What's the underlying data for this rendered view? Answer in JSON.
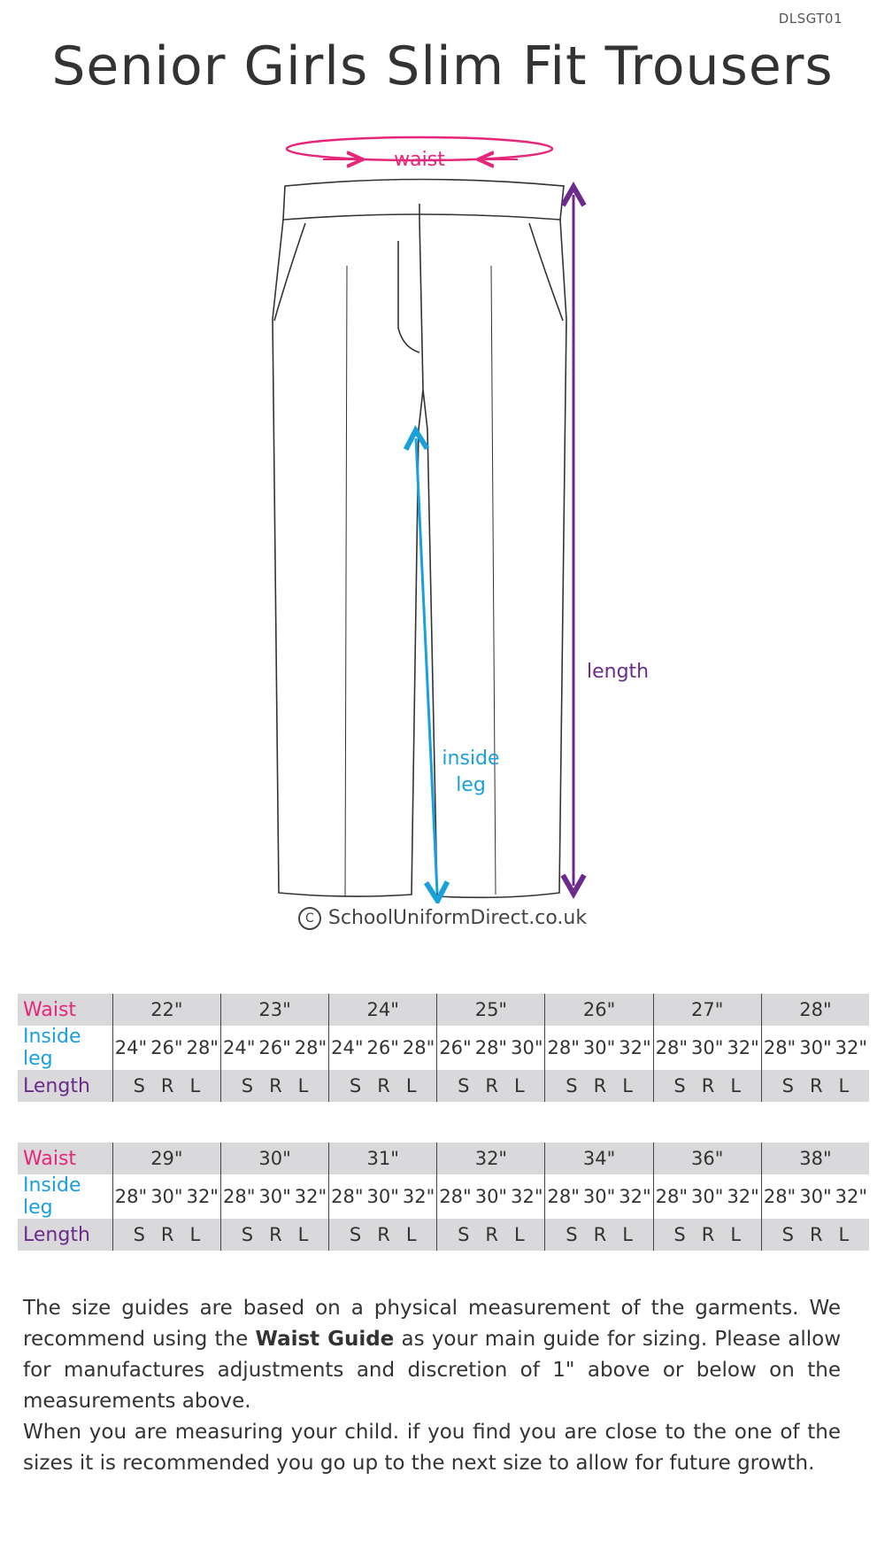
{
  "product_code": "DLSGT01",
  "title": "Senior Girls Slim Fit Trousers",
  "diagram": {
    "waist_label": "waist",
    "length_label": "length",
    "inside_leg_label_1": "inside",
    "inside_leg_label_2": "leg",
    "colors": {
      "waist": "#e6267a",
      "inside_leg": "#1aa0db",
      "length": "#6b2a8c"
    }
  },
  "copyright": "SchoolUniformDirect.co.uk",
  "tables": [
    {
      "labels": {
        "waist": "Waist",
        "inside_leg": "Inside leg",
        "length": "Length"
      },
      "columns": [
        {
          "waist": "22\"",
          "legs": [
            "24\"",
            "26\"",
            "28\""
          ],
          "lengths": [
            "S",
            "R",
            "L"
          ]
        },
        {
          "waist": "23\"",
          "legs": [
            "24\"",
            "26\"",
            "28\""
          ],
          "lengths": [
            "S",
            "R",
            "L"
          ]
        },
        {
          "waist": "24\"",
          "legs": [
            "24\"",
            "26\"",
            "28\""
          ],
          "lengths": [
            "S",
            "R",
            "L"
          ]
        },
        {
          "waist": "25\"",
          "legs": [
            "26\"",
            "28\"",
            "30\""
          ],
          "lengths": [
            "S",
            "R",
            "L"
          ]
        },
        {
          "waist": "26\"",
          "legs": [
            "28\"",
            "30\"",
            "32\""
          ],
          "lengths": [
            "S",
            "R",
            "L"
          ]
        },
        {
          "waist": "27\"",
          "legs": [
            "28\"",
            "30\"",
            "32\""
          ],
          "lengths": [
            "S",
            "R",
            "L"
          ]
        },
        {
          "waist": "28\"",
          "legs": [
            "28\"",
            "30\"",
            "32\""
          ],
          "lengths": [
            "S",
            "R",
            "L"
          ]
        }
      ]
    },
    {
      "labels": {
        "waist": "Waist",
        "inside_leg": "Inside leg",
        "length": "Length"
      },
      "columns": [
        {
          "waist": "29\"",
          "legs": [
            "28\"",
            "30\"",
            "32\""
          ],
          "lengths": [
            "S",
            "R",
            "L"
          ]
        },
        {
          "waist": "30\"",
          "legs": [
            "28\"",
            "30\"",
            "32\""
          ],
          "lengths": [
            "S",
            "R",
            "L"
          ]
        },
        {
          "waist": "31\"",
          "legs": [
            "28\"",
            "30\"",
            "32\""
          ],
          "lengths": [
            "S",
            "R",
            "L"
          ]
        },
        {
          "waist": "32\"",
          "legs": [
            "28\"",
            "30\"",
            "32\""
          ],
          "lengths": [
            "S",
            "R",
            "L"
          ]
        },
        {
          "waist": "34\"",
          "legs": [
            "28\"",
            "30\"",
            "32\""
          ],
          "lengths": [
            "S",
            "R",
            "L"
          ]
        },
        {
          "waist": "36\"",
          "legs": [
            "28\"",
            "30\"",
            "32\""
          ],
          "lengths": [
            "S",
            "R",
            "L"
          ]
        },
        {
          "waist": "38\"",
          "legs": [
            "28\"",
            "30\"",
            "32\""
          ],
          "lengths": [
            "S",
            "R",
            "L"
          ]
        }
      ]
    }
  ],
  "note": {
    "p1_a": "The size guides are based on a physical measurement of the garments. We recommend using the",
    "p1_bold": "Waist Guide",
    "p1_b": "as your main guide for sizing. Please allow for manufactures adjustments and discretion of 1\" above or below on the measurements above.",
    "p2": "When you are measuring your child. if you find you are close to the one of the sizes it is recommended you go up to the next size to allow for future growth."
  }
}
